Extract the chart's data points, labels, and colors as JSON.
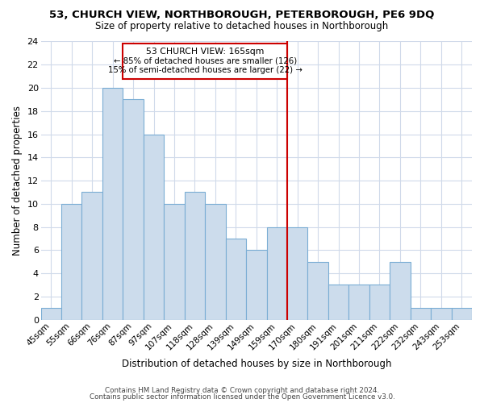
{
  "title1": "53, CHURCH VIEW, NORTHBOROUGH, PETERBOROUGH, PE6 9DQ",
  "title2": "Size of property relative to detached houses in Northborough",
  "xlabel": "Distribution of detached houses by size in Northborough",
  "ylabel": "Number of detached properties",
  "categories": [
    "45sqm",
    "55sqm",
    "66sqm",
    "76sqm",
    "87sqm",
    "97sqm",
    "107sqm",
    "118sqm",
    "128sqm",
    "139sqm",
    "149sqm",
    "159sqm",
    "170sqm",
    "180sqm",
    "191sqm",
    "201sqm",
    "211sqm",
    "222sqm",
    "232sqm",
    "243sqm",
    "253sqm"
  ],
  "values": [
    1,
    10,
    11,
    20,
    19,
    16,
    10,
    11,
    10,
    7,
    6,
    8,
    8,
    5,
    3,
    3,
    3,
    5,
    1,
    1,
    1
  ],
  "bar_color": "#ccdcec",
  "bar_edge_color": "#7aadd4",
  "red_line_index": 12,
  "marker_label": "53 CHURCH VIEW: 165sqm",
  "annotation_line1": "← 85% of detached houses are smaller (126)",
  "annotation_line2": "15% of semi-detached houses are larger (22) →",
  "ylim": [
    0,
    24
  ],
  "yticks": [
    0,
    2,
    4,
    6,
    8,
    10,
    12,
    14,
    16,
    18,
    20,
    22,
    24
  ],
  "footer1": "Contains HM Land Registry data © Crown copyright and database right 2024.",
  "footer2": "Contains public sector information licensed under the Open Government Licence v3.0.",
  "red_color": "#cc0000",
  "background_color": "#ffffff",
  "grid_color": "#d0daea"
}
